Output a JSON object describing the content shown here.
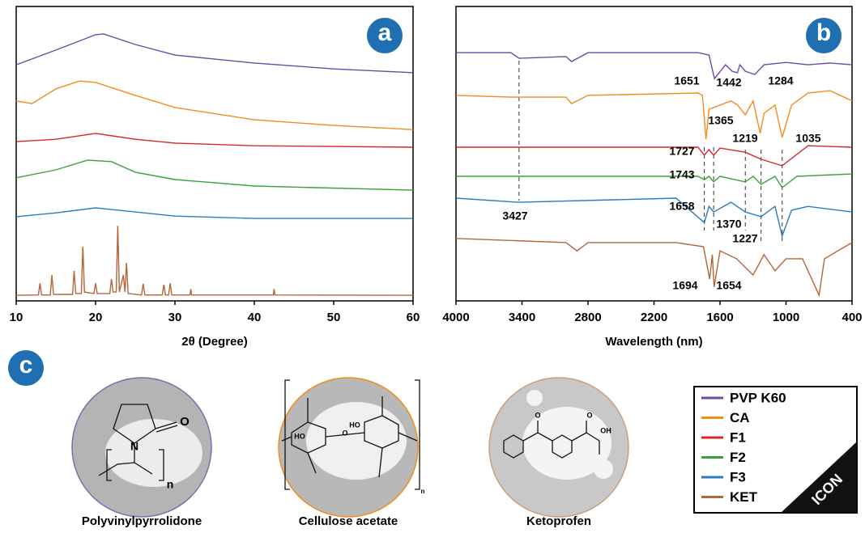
{
  "chart_data": [
    {
      "type": "line",
      "panel_label": "a",
      "xlabel": "2θ (Degree)",
      "xlim": [
        10,
        60
      ],
      "xticks": [
        10,
        20,
        30,
        40,
        50,
        60
      ],
      "ylim": [
        0,
        100
      ],
      "series": [
        {
          "color": "#6a4aa5",
          "x": [
            10,
            15,
            20,
            21,
            25,
            30,
            40,
            50,
            60
          ],
          "values": [
            80.2,
            85.2,
            90.4,
            90.7,
            87.1,
            83.5,
            80.8,
            78.8,
            77.5
          ]
        },
        {
          "color": "#f28c1c",
          "x": [
            10,
            12,
            15,
            18,
            20,
            25,
            30,
            40,
            50,
            60
          ],
          "values": [
            67.9,
            67.0,
            72.0,
            74.7,
            74.2,
            69.8,
            65.7,
            61.5,
            59.6,
            58.2
          ]
        },
        {
          "color": "#d7262c",
          "x": [
            10,
            15,
            20,
            25,
            30,
            40,
            60
          ],
          "values": [
            54.1,
            54.9,
            56.9,
            54.9,
            53.6,
            52.7,
            52.2
          ]
        },
        {
          "color": "#3aa335",
          "x": [
            10,
            15,
            19,
            22,
            25,
            30,
            40,
            60
          ],
          "values": [
            41.8,
            44.5,
            47.8,
            47.3,
            43.7,
            41.2,
            39.0,
            37.6
          ]
        },
        {
          "color": "#2a7bbf",
          "x": [
            10,
            15,
            20,
            25,
            30,
            40,
            60
          ],
          "values": [
            28.6,
            29.9,
            31.6,
            30.2,
            28.8,
            28.0,
            28.0
          ]
        },
        {
          "color": "#b5653a",
          "x": [
            10,
            12.8,
            13,
            13.2,
            14.3,
            14.5,
            14.7,
            17.1,
            17.3,
            17.5,
            18.2,
            18.4,
            18.6,
            19.8,
            20,
            20.2,
            21.8,
            22,
            22.2,
            22.6,
            22.8,
            23,
            23.5,
            23.7,
            23.9,
            24.1,
            25.8,
            26,
            26.2,
            28.4,
            28.6,
            28.8,
            29.2,
            29.4,
            29.6,
            31.9,
            32,
            32.1,
            42.4,
            42.5,
            42.6,
            60
          ],
          "values": [
            1.9,
            2.0,
            6.0,
            2.0,
            2.0,
            8.8,
            2.2,
            2.2,
            10.2,
            2.5,
            2.5,
            18.4,
            3.0,
            2.5,
            6.0,
            2.5,
            2.5,
            7.4,
            3.0,
            3.0,
            25.5,
            3.0,
            8.8,
            3.0,
            12.9,
            2.5,
            2.0,
            5.8,
            2.0,
            2.0,
            5.5,
            2.0,
            2.0,
            6.0,
            2.0,
            2.0,
            4.0,
            2.0,
            2.0,
            4.0,
            2.0,
            1.9
          ]
        }
      ]
    },
    {
      "type": "line",
      "panel_label": "b",
      "xlabel": "Wavelength (nm)",
      "xlim": [
        4000,
        400
      ],
      "xticks": [
        4000,
        3400,
        2800,
        2200,
        1600,
        1000,
        400
      ],
      "ylim": [
        0,
        100
      ],
      "series": [
        {
          "name": "PVP K60",
          "color": "#6a4aa5",
          "x": [
            4000,
            3500,
            3427,
            3000,
            2950,
            2800,
            1800,
            1700,
            1651,
            1550,
            1490,
            1442,
            1420,
            1370,
            1284,
            1200,
            1000,
            800,
            600,
            400
          ],
          "values": [
            84.3,
            84.3,
            82.4,
            83.0,
            81.3,
            84.3,
            84.3,
            83.5,
            75.5,
            80.2,
            78.0,
            77.5,
            80.2,
            78.0,
            76.9,
            80.2,
            81.0,
            80.2,
            80.8,
            80.2
          ]
        },
        {
          "name": "CA",
          "color": "#f28c1c",
          "x": [
            4000,
            3500,
            3000,
            2950,
            2800,
            1800,
            1760,
            1727,
            1700,
            1500,
            1440,
            1370,
            1300,
            1235,
            1200,
            1100,
            1035,
            950,
            800,
            600,
            400
          ],
          "values": [
            69.8,
            69.2,
            69.2,
            67.0,
            69.8,
            70.6,
            69.8,
            54.9,
            65.1,
            67.9,
            66.5,
            63.2,
            67.9,
            56.9,
            63.7,
            66.5,
            55.5,
            66.5,
            70.6,
            71.4,
            67.9
          ]
        },
        {
          "name": "F1",
          "color": "#d7262c",
          "x": [
            4000,
            1800,
            1743,
            1700,
            1658,
            1600,
            1370,
            1227,
            1035,
            800,
            400
          ],
          "values": [
            52.2,
            52.2,
            49.5,
            51.4,
            49.5,
            51.9,
            50.5,
            48.1,
            45.9,
            52.7,
            52.2
          ]
        },
        {
          "name": "F2",
          "color": "#3aa335",
          "x": [
            4000,
            1800,
            1743,
            1700,
            1658,
            1600,
            1370,
            1300,
            1227,
            1100,
            1035,
            900,
            400
          ],
          "values": [
            42.3,
            42.3,
            41.2,
            42.3,
            40.4,
            42.3,
            40.4,
            42.3,
            39.6,
            42.3,
            38.5,
            42.3,
            43.1
          ]
        },
        {
          "name": "F3",
          "color": "#2a7bbf",
          "x": [
            4000,
            3427,
            2000,
            1743,
            1700,
            1658,
            1500,
            1370,
            1227,
            1100,
            1035,
            950,
            800,
            400
          ],
          "values": [
            34.9,
            33.5,
            34.9,
            26.6,
            32.1,
            30.2,
            33.5,
            30.2,
            28.6,
            32.1,
            22.0,
            30.8,
            32.1,
            30.2
          ]
        },
        {
          "name": "KET",
          "color": "#b5653a",
          "x": [
            4000,
            3000,
            2900,
            2800,
            2000,
            1750,
            1694,
            1670,
            1654,
            1600,
            1450,
            1300,
            1200,
            1100,
            1000,
            850,
            700,
            650,
            400
          ],
          "values": [
            21.2,
            19.8,
            17.0,
            19.8,
            19.8,
            18.4,
            7.4,
            15.7,
            4.7,
            17.0,
            14.3,
            8.8,
            15.7,
            10.2,
            14.3,
            14.3,
            1.9,
            14.3,
            19.8
          ]
        }
      ],
      "annotations": [
        {
          "peak": 1651,
          "dashed": false
        },
        {
          "peak": 1442,
          "dashed": false
        },
        {
          "peak": 1284,
          "dashed": false
        },
        {
          "peak": 1365,
          "dashed": false
        },
        {
          "peak": 1727,
          "dashed": false
        },
        {
          "peak": 1219,
          "dashed": false
        },
        {
          "peak": 1035,
          "dashed": true
        },
        {
          "peak": 1743,
          "dashed": true
        },
        {
          "peak": 1658,
          "dashed": true
        },
        {
          "peak": 3427,
          "dashed": true
        },
        {
          "peak": 1370,
          "dashed": true
        },
        {
          "peak": 1227,
          "dashed": true
        },
        {
          "peak": 1694,
          "dashed": false
        },
        {
          "peak": 1654,
          "dashed": false
        }
      ]
    }
  ],
  "panel_c": {
    "label": "c",
    "items": [
      {
        "name": "Polyvinylpyrrolidone",
        "atoms": [
          "O",
          "N",
          "n"
        ]
      },
      {
        "name": "Cellulose acetate",
        "atoms": [
          "HO",
          "HO",
          "O",
          "n"
        ]
      },
      {
        "name": "Ketoprofen",
        "atoms": [
          "O",
          "OH",
          "O"
        ]
      }
    ]
  },
  "watermark": "ICON"
}
